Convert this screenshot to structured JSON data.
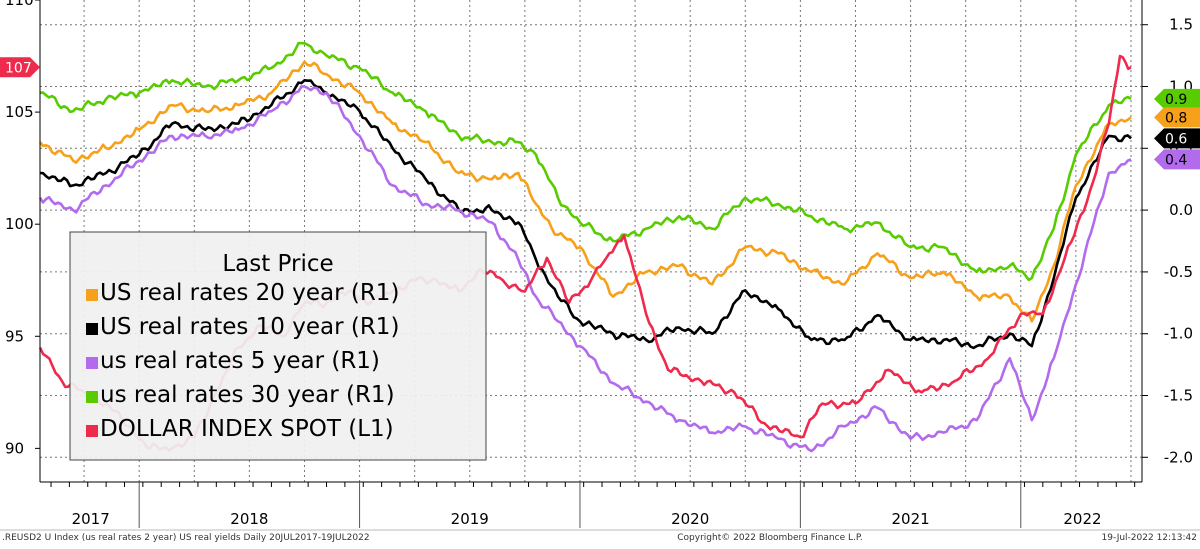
{
  "chart_data": {
    "type": "line",
    "grid": true,
    "legend_placement": "left",
    "legend_title": "Last Price",
    "x_years": [
      "2017",
      "2018",
      "2019",
      "2020",
      "2021",
      "2022"
    ],
    "left_axis": {
      "ticks": [
        "90",
        "95",
        "100",
        "105",
        "110"
      ],
      "range": [
        88.5,
        110
      ]
    },
    "right_axis": {
      "ticks": [
        "-2.0",
        "-1.5",
        "-1.0",
        "-0.5",
        "0.0",
        "0.5",
        "1.0",
        "1.5"
      ],
      "range": [
        -2.2,
        1.7
      ]
    },
    "last_value_tags": [
      {
        "label": "107",
        "axis": "left",
        "value": 107,
        "color": "#ee2a4d",
        "text_color": "#ffffff"
      },
      {
        "label": "0.9",
        "axis": "right",
        "value": 0.9,
        "color": "#58cc00",
        "text_color": "#000000"
      },
      {
        "label": "0.8",
        "axis": "right",
        "value": 0.75,
        "color": "#f7a01a",
        "text_color": "#000000"
      },
      {
        "label": "0.6",
        "axis": "right",
        "value": 0.58,
        "color": "#000000",
        "text_color": "#ffffff"
      },
      {
        "label": "0.4",
        "axis": "right",
        "value": 0.41,
        "color": "#b36bee",
        "text_color": "#000000"
      }
    ],
    "series": [
      {
        "name": "US real rates 20 year  (R1)",
        "color": "#f7a01a",
        "axis": "right",
        "x": [
          2017.55,
          2017.7,
          2017.85,
          2018.0,
          2018.15,
          2018.3,
          2018.45,
          2018.6,
          2018.75,
          2018.85,
          2019.0,
          2019.15,
          2019.3,
          2019.45,
          2019.6,
          2019.72,
          2019.8,
          2019.9,
          2020.0,
          2020.15,
          2020.3,
          2020.45,
          2020.6,
          2020.75,
          2020.9,
          2021.05,
          2021.2,
          2021.35,
          2021.5,
          2021.65,
          2021.8,
          2021.95,
          2022.05,
          2022.15,
          2022.25,
          2022.4,
          2022.5
        ],
        "y": [
          0.55,
          0.4,
          0.5,
          0.65,
          0.85,
          0.8,
          0.85,
          0.95,
          1.2,
          1.1,
          0.95,
          0.7,
          0.55,
          0.3,
          0.25,
          0.3,
          0.05,
          -0.2,
          -0.3,
          -0.7,
          -0.5,
          -0.45,
          -0.6,
          -0.3,
          -0.35,
          -0.5,
          -0.6,
          -0.35,
          -0.55,
          -0.5,
          -0.7,
          -0.7,
          -0.9,
          -0.45,
          0.2,
          0.7,
          0.75
        ]
      },
      {
        "name": "US real rates 10 year  (R1)",
        "color": "#000000",
        "axis": "right",
        "x": [
          2017.55,
          2017.7,
          2017.85,
          2018.0,
          2018.15,
          2018.3,
          2018.45,
          2018.6,
          2018.75,
          2018.85,
          2019.0,
          2019.15,
          2019.3,
          2019.45,
          2019.6,
          2019.72,
          2019.8,
          2019.9,
          2020.0,
          2020.15,
          2020.3,
          2020.45,
          2020.6,
          2020.75,
          2020.9,
          2021.05,
          2021.2,
          2021.35,
          2021.5,
          2021.65,
          2021.8,
          2021.95,
          2022.05,
          2022.15,
          2022.25,
          2022.4,
          2022.5
        ],
        "y": [
          0.3,
          0.2,
          0.3,
          0.45,
          0.7,
          0.65,
          0.7,
          0.85,
          1.05,
          0.95,
          0.8,
          0.5,
          0.25,
          0.0,
          0.0,
          -0.1,
          -0.4,
          -0.7,
          -0.9,
          -1.0,
          -1.05,
          -0.95,
          -1.0,
          -0.65,
          -0.8,
          -1.05,
          -1.05,
          -0.85,
          -1.05,
          -1.05,
          -1.1,
          -1.0,
          -1.1,
          -0.55,
          0.1,
          0.6,
          0.58
        ]
      },
      {
        "name": "us real rates 5 year  (R1)",
        "color": "#b36bee",
        "axis": "right",
        "x": [
          2017.55,
          2017.7,
          2017.85,
          2018.0,
          2018.15,
          2018.3,
          2018.45,
          2018.6,
          2018.75,
          2018.85,
          2019.0,
          2019.15,
          2019.3,
          2019.45,
          2019.6,
          2019.72,
          2019.8,
          2019.9,
          2020.0,
          2020.15,
          2020.3,
          2020.45,
          2020.6,
          2020.75,
          2020.9,
          2021.05,
          2021.2,
          2021.35,
          2021.5,
          2021.65,
          2021.8,
          2021.95,
          2022.05,
          2022.15,
          2022.25,
          2022.4,
          2022.5
        ],
        "y": [
          0.1,
          0.0,
          0.2,
          0.4,
          0.6,
          0.6,
          0.65,
          0.8,
          1.0,
          0.95,
          0.6,
          0.2,
          0.05,
          0.0,
          -0.1,
          -0.4,
          -0.7,
          -0.9,
          -1.1,
          -1.4,
          -1.55,
          -1.7,
          -1.8,
          -1.75,
          -1.85,
          -1.95,
          -1.75,
          -1.6,
          -1.85,
          -1.8,
          -1.7,
          -1.2,
          -1.7,
          -1.2,
          -0.6,
          0.3,
          0.41
        ]
      },
      {
        "name": "us real rates 30 year  (R1)",
        "color": "#58cc00",
        "axis": "right",
        "x": [
          2017.55,
          2017.7,
          2017.85,
          2018.0,
          2018.15,
          2018.3,
          2018.45,
          2018.6,
          2018.75,
          2018.85,
          2019.0,
          2019.15,
          2019.3,
          2019.45,
          2019.6,
          2019.72,
          2019.8,
          2019.9,
          2020.0,
          2020.15,
          2020.3,
          2020.45,
          2020.6,
          2020.75,
          2020.9,
          2021.05,
          2021.2,
          2021.35,
          2021.5,
          2021.65,
          2021.8,
          2021.95,
          2022.05,
          2022.15,
          2022.25,
          2022.4,
          2022.5
        ],
        "y": [
          0.95,
          0.8,
          0.9,
          0.95,
          1.05,
          1.0,
          1.05,
          1.15,
          1.35,
          1.25,
          1.15,
          0.95,
          0.8,
          0.6,
          0.55,
          0.55,
          0.45,
          0.1,
          -0.1,
          -0.25,
          -0.15,
          -0.05,
          -0.15,
          0.1,
          0.05,
          -0.05,
          -0.15,
          -0.1,
          -0.3,
          -0.3,
          -0.5,
          -0.45,
          -0.55,
          -0.15,
          0.45,
          0.85,
          0.9
        ]
      },
      {
        "name": "DOLLAR INDEX SPOT  (L1)",
        "color": "#ee2a4d",
        "axis": "left",
        "x": [
          2017.55,
          2017.65,
          2017.75,
          2017.85,
          2017.95,
          2018.05,
          2018.15,
          2018.25,
          2018.35,
          2018.45,
          2018.55,
          2018.65,
          2018.75,
          2018.85,
          2018.95,
          2019.05,
          2019.15,
          2019.25,
          2019.35,
          2019.45,
          2019.55,
          2019.65,
          2019.75,
          2019.85,
          2019.95,
          2020.05,
          2020.12,
          2020.2,
          2020.3,
          2020.4,
          2020.55,
          2020.7,
          2020.85,
          2021.0,
          2021.1,
          2021.25,
          2021.4,
          2021.55,
          2021.7,
          2021.85,
          2022.0,
          2022.1,
          2022.2,
          2022.3,
          2022.4,
          2022.45,
          2022.5
        ],
        "y": [
          94.5,
          93.0,
          92.5,
          92.0,
          91.0,
          90.0,
          90.0,
          90.5,
          92.5,
          94.5,
          95.5,
          95.0,
          96.5,
          96.5,
          97.0,
          96.5,
          97.0,
          97.5,
          97.5,
          97.0,
          98.0,
          97.5,
          97.0,
          98.5,
          96.5,
          97.5,
          98.5,
          99.5,
          96.0,
          93.5,
          93.0,
          92.5,
          91.0,
          90.5,
          92.0,
          92.0,
          93.5,
          92.5,
          93.0,
          94.0,
          96.0,
          96.0,
          98.5,
          101.0,
          104.5,
          107.5,
          107.0
        ]
      }
    ]
  },
  "footer": {
    "left": ".REUSD2 U Index (us real rates 2 year) US real yields  Daily 20JUL2017-19JUL2022",
    "center": "Copyright© 2022 Bloomberg Finance L.P.",
    "right": "19-Jul-2022 12:13:42"
  }
}
